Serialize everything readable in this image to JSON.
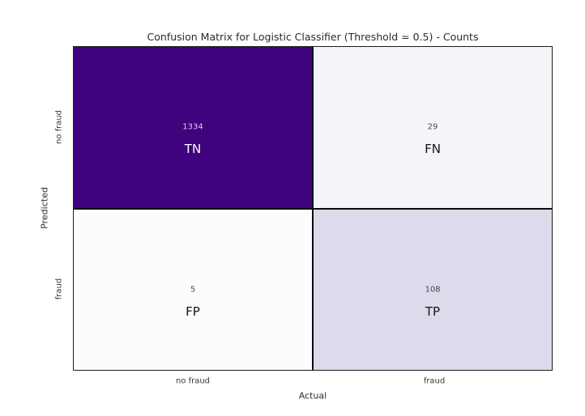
{
  "title": "Confusion Matrix for Logistic Classifier (Threshold = 0.5) - Counts",
  "axes": {
    "x_label": "Actual",
    "y_label": "Predicted",
    "x_ticks": [
      "no fraud",
      "fraud"
    ],
    "y_ticks": [
      "no fraud",
      "fraud"
    ]
  },
  "cells": {
    "tn": {
      "count": "1334",
      "label": "TN"
    },
    "fn": {
      "count": "29",
      "label": "FN"
    },
    "fp": {
      "count": "5",
      "label": "FP"
    },
    "tp": {
      "count": "108",
      "label": "TP"
    }
  },
  "colors": {
    "cell_tn_bg": "#3f037e",
    "cell_fn_bg": "#f5f4f9",
    "cell_fp_bg": "#fcfbfd",
    "cell_tp_bg": "#dcdbeb",
    "tn_text": "#ffffff",
    "light_cell_text": "#141414",
    "grid_lines": "#0a0a0a",
    "figure_bg": "#ffffff"
  },
  "chart_data": {
    "type": "heatmap",
    "title": "Confusion Matrix for Logistic Classifier (Threshold = 0.5) - Counts",
    "xlabel": "Actual",
    "ylabel": "Predicted",
    "x_categories": [
      "no fraud",
      "fraud"
    ],
    "y_categories": [
      "no fraud",
      "fraud"
    ],
    "matrix": [
      [
        1334,
        29
      ],
      [
        5,
        108
      ]
    ],
    "annotations": [
      [
        "TN",
        "FN"
      ],
      [
        "FP",
        "TP"
      ]
    ],
    "colormap": "Purples",
    "cell_colors": [
      [
        "#3f037e",
        "#f5f4f9"
      ],
      [
        "#fcfbfd",
        "#dcdbeb"
      ]
    ],
    "legend": "none",
    "grid": false
  }
}
